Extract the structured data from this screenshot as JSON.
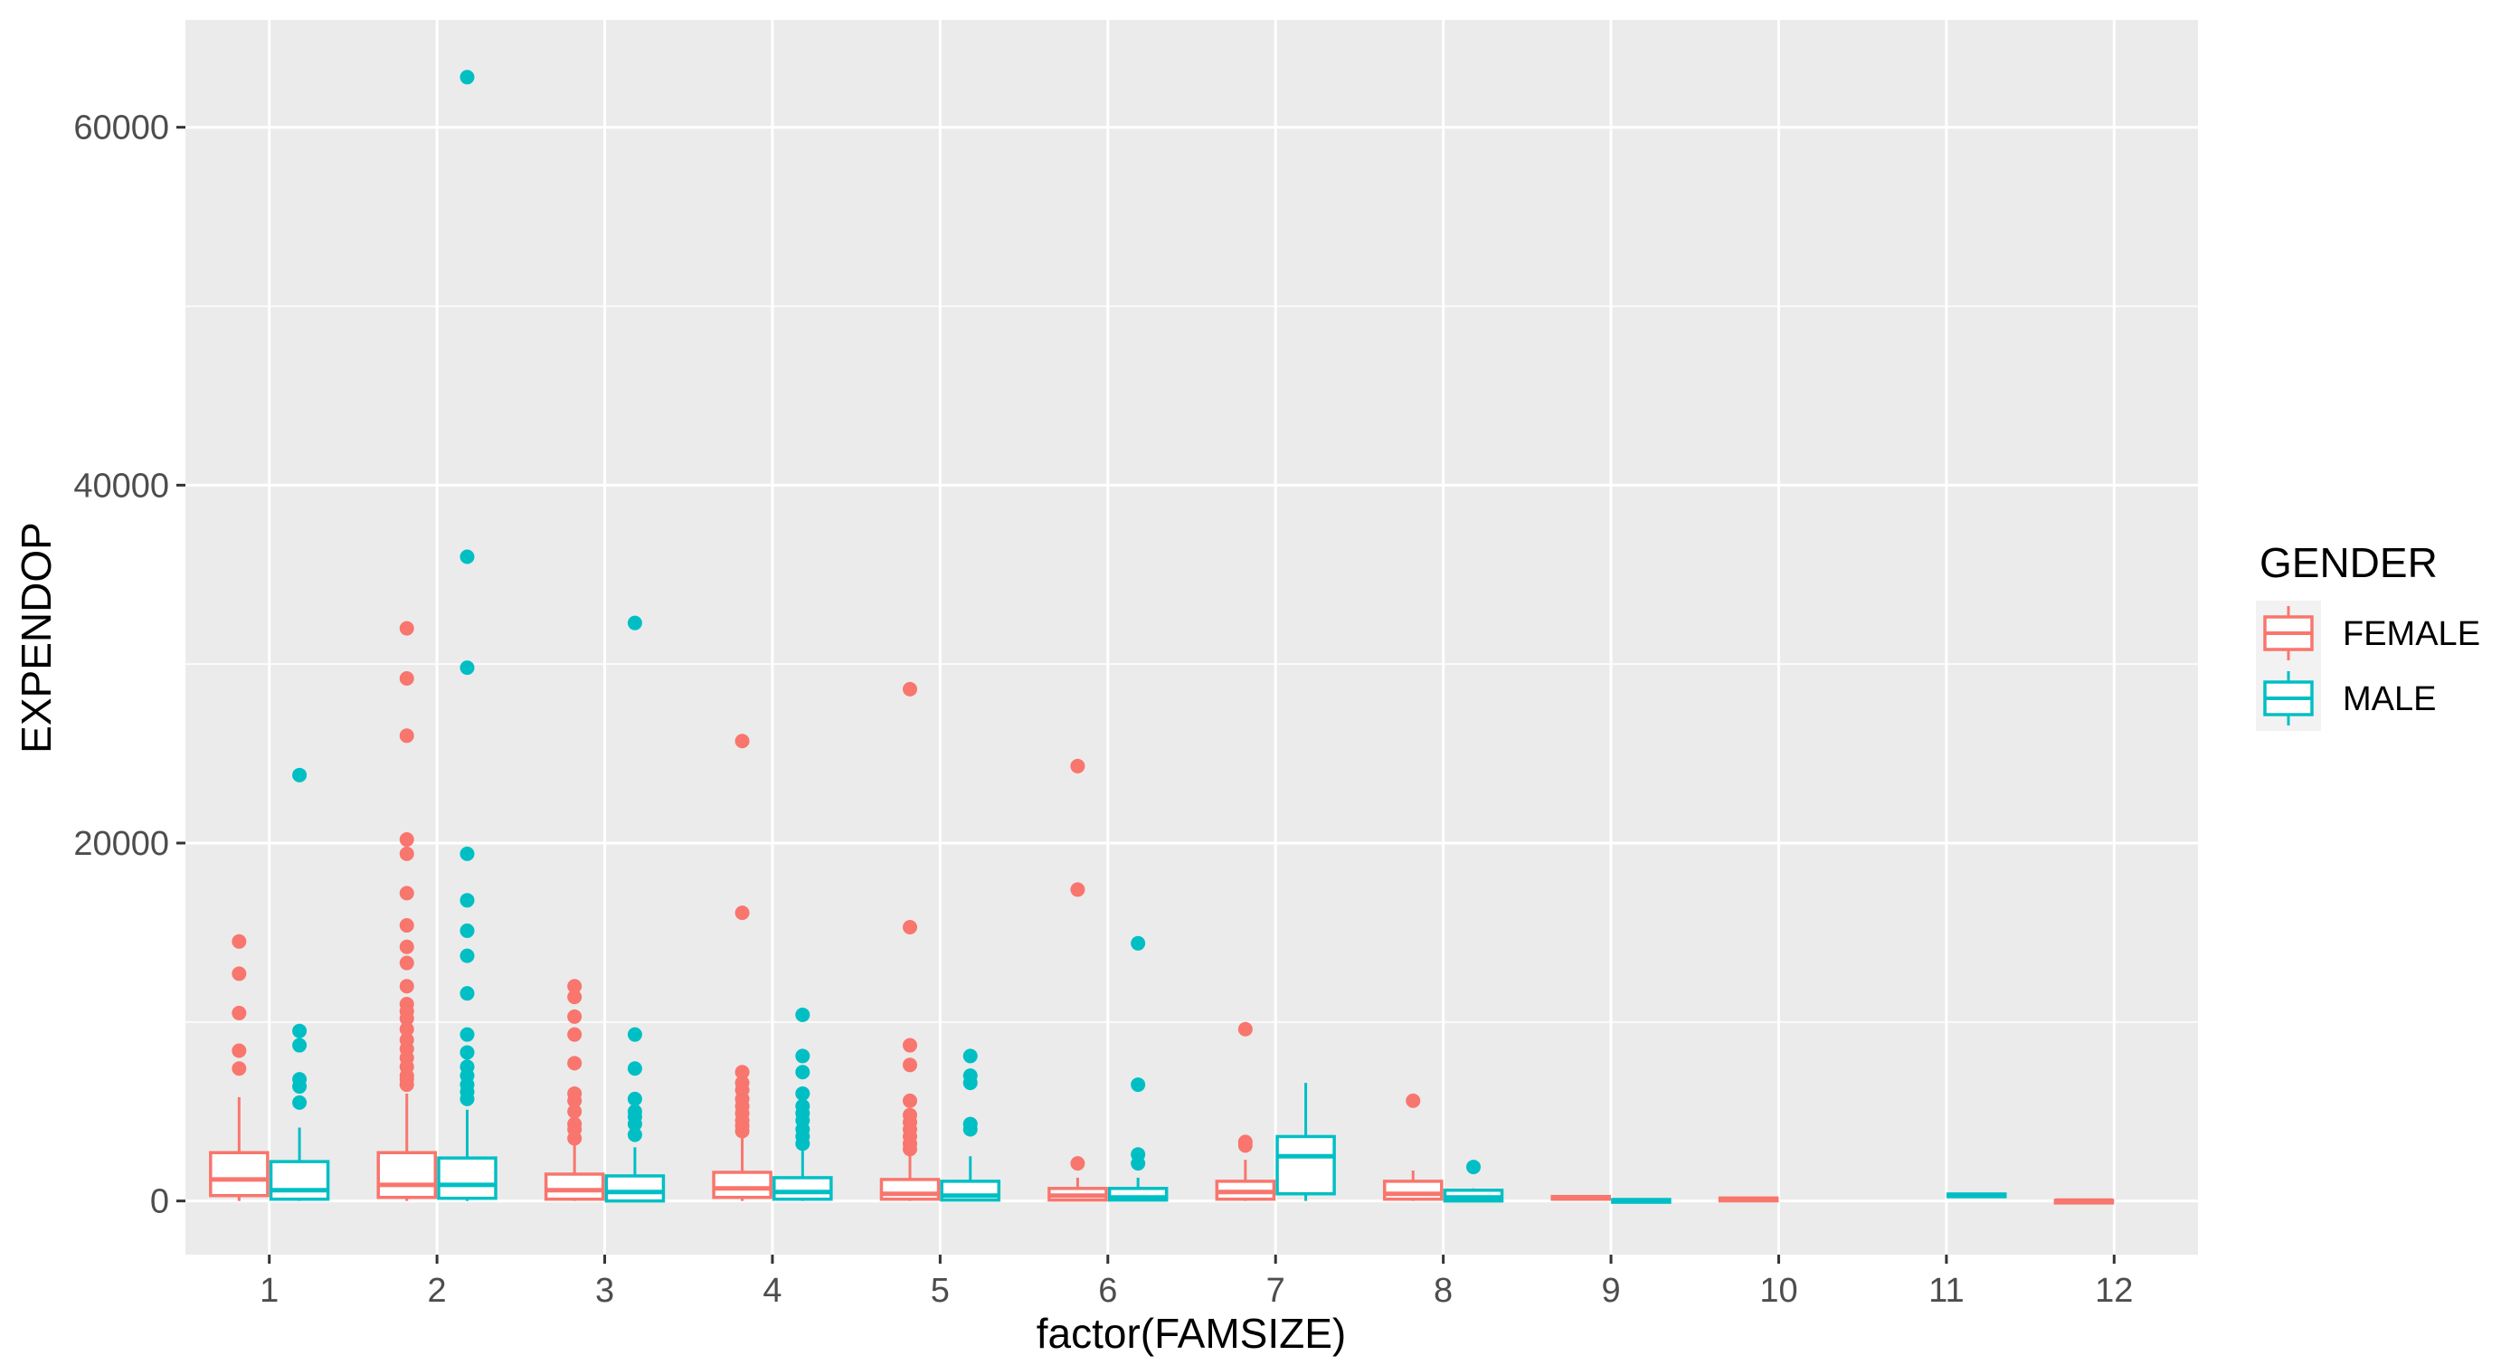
{
  "chart_data": {
    "type": "boxplot",
    "xlabel": "factor(FAMSIZE)",
    "ylabel": "EXPENDOP",
    "categories": [
      "1",
      "2",
      "3",
      "4",
      "5",
      "6",
      "7",
      "8",
      "9",
      "10",
      "11",
      "12"
    ],
    "ylim": [
      -3000,
      66000
    ],
    "yticks": [
      0,
      20000,
      40000,
      60000
    ],
    "ytick_labels": [
      "0",
      "20000",
      "40000",
      "60000"
    ],
    "grid": true,
    "legend": {
      "title": "GENDER",
      "position": "right"
    },
    "series": [
      {
        "name": "FEMALE",
        "color": "#F8766D",
        "boxes": [
          {
            "category": "1",
            "q1": 300,
            "median": 1200,
            "q3": 2700,
            "lower": 0,
            "upper": 5800,
            "outliers": [
              7400,
              8400,
              10500,
              12700,
              14500
            ]
          },
          {
            "category": "2",
            "q1": 200,
            "median": 900,
            "q3": 2700,
            "lower": 0,
            "upper": 6000,
            "outliers": [
              6500,
              6800,
              7000,
              7500,
              8000,
              8500,
              9000,
              9600,
              10200,
              10600,
              11000,
              12000,
              13300,
              14200,
              15400,
              17200,
              19400,
              20200,
              26000,
              29200,
              32000
            ]
          },
          {
            "category": "3",
            "q1": 100,
            "median": 600,
            "q3": 1500,
            "lower": 0,
            "upper": 3200,
            "outliers": [
              3500,
              4000,
              4300,
              5000,
              5600,
              6000,
              7700,
              9300,
              10300,
              11400,
              12000
            ]
          },
          {
            "category": "4",
            "q1": 200,
            "median": 700,
            "q3": 1600,
            "lower": 0,
            "upper": 3700,
            "outliers": [
              3900,
              4200,
              4500,
              4900,
              5300,
              5700,
              6200,
              6600,
              7200,
              16100,
              25700
            ]
          },
          {
            "category": "5",
            "q1": 100,
            "median": 400,
            "q3": 1200,
            "lower": 0,
            "upper": 2700,
            "outliers": [
              2900,
              3200,
              3600,
              4000,
              4400,
              4800,
              5600,
              7600,
              8700,
              15300,
              28600
            ]
          },
          {
            "category": "6",
            "q1": 50,
            "median": 300,
            "q3": 700,
            "lower": 0,
            "upper": 1300,
            "outliers": [
              2100,
              17400,
              24300
            ]
          },
          {
            "category": "7",
            "q1": 100,
            "median": 500,
            "q3": 1100,
            "lower": 0,
            "upper": 2300,
            "outliers": [
              3100,
              3300,
              9600
            ]
          },
          {
            "category": "8",
            "q1": 100,
            "median": 400,
            "q3": 1100,
            "lower": 0,
            "upper": 1700,
            "outliers": [
              5600
            ]
          },
          {
            "category": "9",
            "q1": 150,
            "median": 200,
            "q3": 250,
            "lower": 150,
            "upper": 250,
            "outliers": []
          },
          {
            "category": "10",
            "q1": 80,
            "median": 120,
            "q3": 160,
            "lower": 80,
            "upper": 160,
            "outliers": []
          },
          {
            "category": "12",
            "q1": 0,
            "median": 20,
            "q3": 40,
            "lower": 0,
            "upper": 40,
            "outliers": []
          }
        ]
      },
      {
        "name": "MALE",
        "color": "#00BFC4",
        "boxes": [
          {
            "category": "1",
            "q1": 100,
            "median": 600,
            "q3": 2200,
            "lower": 0,
            "upper": 4100,
            "outliers": [
              5500,
              6400,
              6800,
              8700,
              9500,
              23800
            ]
          },
          {
            "category": "2",
            "q1": 150,
            "median": 900,
            "q3": 2400,
            "lower": 0,
            "upper": 5100,
            "outliers": [
              5700,
              6100,
              6500,
              7000,
              7500,
              8300,
              9300,
              11600,
              13700,
              15100,
              16800,
              19400,
              29800,
              36000,
              62800
            ]
          },
          {
            "category": "3",
            "q1": 0,
            "median": 500,
            "q3": 1400,
            "lower": 0,
            "upper": 3000,
            "outliers": [
              3700,
              4300,
              4700,
              5000,
              5700,
              7400,
              9300,
              32300
            ]
          },
          {
            "category": "4",
            "q1": 100,
            "median": 500,
            "q3": 1300,
            "lower": 0,
            "upper": 2800,
            "outliers": [
              3200,
              3600,
              4000,
              4500,
              4900,
              5300,
              6000,
              7200,
              8100,
              10400
            ]
          },
          {
            "category": "5",
            "q1": 50,
            "median": 300,
            "q3": 1100,
            "lower": 0,
            "upper": 2500,
            "outliers": [
              4000,
              4300,
              6600,
              7000,
              8100
            ]
          },
          {
            "category": "6",
            "q1": 50,
            "median": 200,
            "q3": 700,
            "lower": 0,
            "upper": 1300,
            "outliers": [
              2100,
              2600,
              6500,
              14400
            ]
          },
          {
            "category": "7",
            "q1": 400,
            "median": 2500,
            "q3": 3600,
            "lower": 0,
            "upper": 6600,
            "outliers": []
          },
          {
            "category": "8",
            "q1": 0,
            "median": 200,
            "q3": 600,
            "lower": 0,
            "upper": 700,
            "outliers": [
              1900
            ]
          },
          {
            "category": "9",
            "q1": 0,
            "median": 40,
            "q3": 80,
            "lower": 0,
            "upper": 80,
            "outliers": []
          },
          {
            "category": "11",
            "q1": 250,
            "median": 320,
            "q3": 390,
            "lower": 250,
            "upper": 390,
            "outliers": []
          }
        ]
      }
    ]
  }
}
